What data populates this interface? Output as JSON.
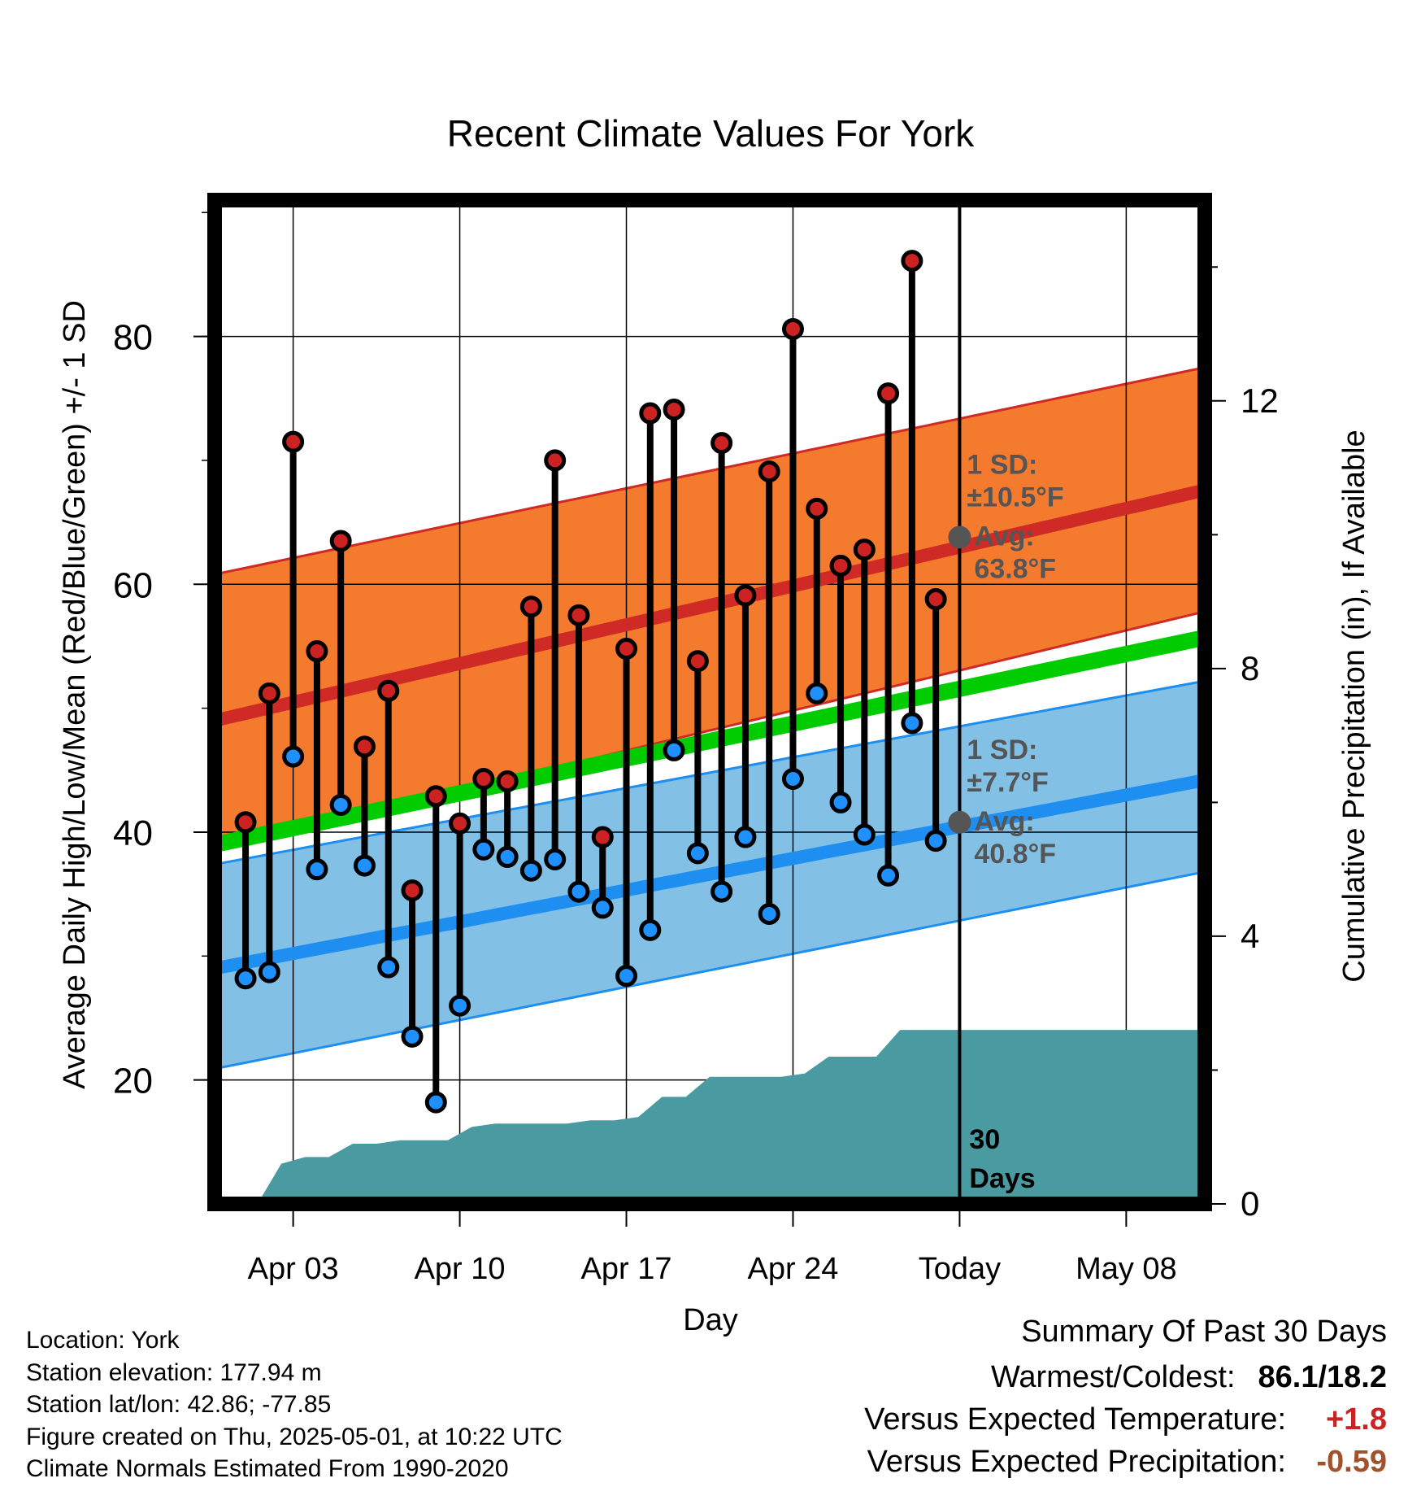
{
  "title": "Recent Climate Values For York",
  "chart_data": {
    "type": "line",
    "title": "Recent Climate Values For York",
    "xlabel": "Day",
    "ylabel": "Average Daily High/Low/Mean (Red/Blue/Green) +/- 1 SD",
    "y2label": "Cumulative Precipitation (in), If Available",
    "x_tick_labels": [
      "Apr 03",
      "Apr 10",
      "Apr 17",
      "Apr 24",
      "Today",
      "May 08"
    ],
    "x_tick_days": [
      3,
      10,
      17,
      24,
      31,
      38
    ],
    "x_range_days": [
      -0.3,
      41.3
    ],
    "ylim": [
      10,
      91
    ],
    "y_ticks": [
      20,
      40,
      60,
      80
    ],
    "y2lim": [
      0,
      15.0
    ],
    "y2_ticks": [
      0,
      4,
      8,
      12
    ],
    "grid": true,
    "days": [
      1,
      2,
      3,
      4,
      5,
      6,
      7,
      8,
      9,
      10,
      11,
      12,
      13,
      14,
      15,
      16,
      17,
      18,
      19,
      20,
      21,
      22,
      23,
      24,
      25,
      26,
      27,
      28,
      29,
      30
    ],
    "daily_high": [
      40.8,
      51.2,
      71.5,
      54.6,
      63.5,
      46.9,
      51.4,
      35.3,
      42.9,
      40.7,
      44.3,
      44.1,
      58.2,
      70.0,
      57.5,
      39.6,
      54.8,
      73.8,
      74.1,
      53.8,
      71.4,
      59.1,
      69.1,
      80.6,
      66.1,
      61.5,
      62.8,
      75.4,
      86.1,
      58.8
    ],
    "daily_low": [
      28.2,
      28.7,
      46.1,
      37.0,
      42.2,
      37.3,
      29.1,
      23.5,
      18.2,
      26.0,
      38.6,
      38.0,
      36.9,
      37.8,
      35.2,
      33.9,
      28.4,
      32.1,
      46.6,
      38.3,
      35.2,
      39.6,
      33.4,
      44.3,
      51.2,
      42.4,
      39.8,
      36.5,
      48.8,
      39.3
    ],
    "normal_high": {
      "start": 49.0,
      "end": 67.6
    },
    "normal_high_sd_band": {
      "upper_start": 60.8,
      "upper_end": 77.5,
      "lower_start": 38.6,
      "lower_end": 57.8
    },
    "normal_mean": {
      "start": 39.0,
      "end": 55.7
    },
    "normal_low": {
      "start": 29.0,
      "end": 44.2
    },
    "normal_low_sd_band": {
      "upper_start": 37.4,
      "upper_end": 52.2,
      "lower_start": 20.9,
      "lower_end": 36.8
    },
    "precip_cumulative": {
      "days": [
        0.5,
        1.5,
        2.5,
        3.5,
        4.5,
        5.5,
        6.5,
        7.5,
        8.5,
        9.5,
        10.5,
        11.5,
        12.5,
        13.5,
        14.5,
        15.5,
        16.5,
        17.5,
        18.5,
        19.5,
        20.5,
        21.5,
        22.5,
        23.5,
        24.5,
        25.5,
        26.5,
        27.5,
        28.5,
        29.5,
        41.3
      ],
      "values": [
        0.0,
        0.0,
        0.6,
        0.7,
        0.7,
        0.9,
        0.9,
        0.95,
        0.95,
        0.95,
        1.15,
        1.2,
        1.2,
        1.2,
        1.2,
        1.25,
        1.25,
        1.3,
        1.6,
        1.6,
        1.9,
        1.9,
        1.9,
        1.9,
        1.95,
        2.2,
        2.2,
        2.2,
        2.6,
        2.6,
        2.6
      ]
    },
    "annotations": [
      {
        "line1": "1 SD:",
        "line2": "±10.5°F",
        "line3": "Avg:",
        "line4": "63.8°F",
        "value": 63.8
      },
      {
        "line1": "1 SD:",
        "line2": "±7.7°F",
        "line3": "Avg:",
        "line4": "40.8°F",
        "value": 40.8
      }
    ],
    "today_label": "30 Days",
    "today_day": 31,
    "colors": {
      "high_band": "#f47a2e",
      "high_line": "#d02a26",
      "low_band": "#82c0e6",
      "low_line": "#1e8ff0",
      "mean_line": "#00cc00",
      "precip": "#4a9aa2",
      "high_marker": "#cc2222",
      "low_marker": "#1e90ff",
      "annotation_text": "#555555"
    }
  },
  "footer": {
    "location": "Location: York",
    "elevation": "Station elevation: 177.94 m",
    "latlon": "Station lat/lon: 42.86; -77.85",
    "created": "Figure created on Thu, 2025-05-01, at 10:22 UTC",
    "normals": "Climate Normals Estimated From 1990-2020"
  },
  "summary": {
    "title": "Summary Of Past 30 Days",
    "warmest_coldest_label": "Warmest/Coldest:",
    "warmest_coldest_value": "86.1/18.2",
    "temp_label": "Versus Expected Temperature:",
    "temp_value": "+1.8",
    "temp_color": "#cc2222",
    "precip_label": "Versus Expected Precipitation:",
    "precip_value": "-0.59",
    "precip_color": "#a0522d"
  }
}
